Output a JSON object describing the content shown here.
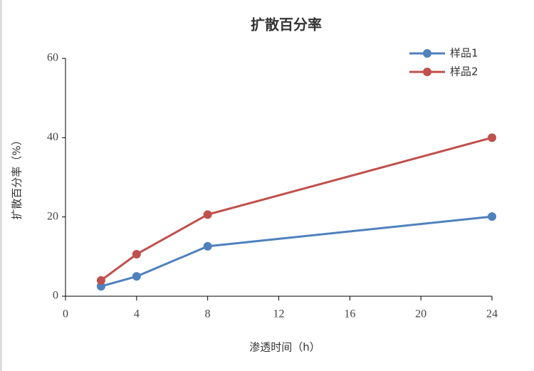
{
  "chart_data": {
    "type": "line",
    "title": "扩散百分率",
    "x_label": "渗透时间（h）",
    "y_label": "扩散百分率（%）",
    "xlim": [
      0,
      24
    ],
    "xticks": [
      0,
      4,
      8,
      12,
      16,
      20,
      24
    ],
    "ylim": [
      0,
      60
    ],
    "yticks": [
      0,
      20,
      40,
      60
    ],
    "legend": "top-right",
    "series": [
      {
        "name": "样品1",
        "color": "#4f81bd",
        "x": [
          2,
          4,
          8,
          24
        ],
        "values": [
          2.5,
          5.0,
          12.6,
          20.1
        ]
      },
      {
        "name": "样品2",
        "color": "#c0504d",
        "x": [
          2,
          4,
          8,
          24
        ],
        "values": [
          4.0,
          10.6,
          20.6,
          40.0
        ]
      }
    ]
  }
}
